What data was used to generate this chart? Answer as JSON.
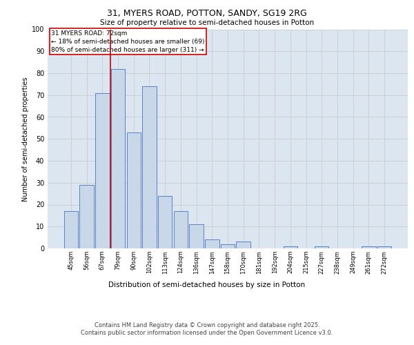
{
  "title1": "31, MYERS ROAD, POTTON, SANDY, SG19 2RG",
  "title2": "Size of property relative to semi-detached houses in Potton",
  "xlabel": "Distribution of semi-detached houses by size in Potton",
  "ylabel": "Number of semi-detached properties",
  "categories": [
    "45sqm",
    "56sqm",
    "67sqm",
    "79sqm",
    "90sqm",
    "102sqm",
    "113sqm",
    "124sqm",
    "136sqm",
    "147sqm",
    "158sqm",
    "170sqm",
    "181sqm",
    "192sqm",
    "204sqm",
    "215sqm",
    "227sqm",
    "238sqm",
    "249sqm",
    "261sqm",
    "272sqm"
  ],
  "values": [
    17,
    29,
    71,
    82,
    53,
    74,
    24,
    17,
    11,
    4,
    2,
    3,
    0,
    0,
    1,
    0,
    1,
    0,
    0,
    1,
    1
  ],
  "bar_color": "#c8d8e8",
  "bar_edge_color": "#4472c4",
  "highlight_line_color": "#cc0000",
  "annotation_text": "31 MYERS ROAD: 72sqm\n← 18% of semi-detached houses are smaller (69)\n80% of semi-detached houses are larger (311) →",
  "annotation_box_color": "#ffffff",
  "annotation_box_edge": "#cc0000",
  "ylim": [
    0,
    100
  ],
  "yticks": [
    0,
    10,
    20,
    30,
    40,
    50,
    60,
    70,
    80,
    90,
    100
  ],
  "grid_color": "#cccccc",
  "background_color": "#dce6f0",
  "footer": "Contains HM Land Registry data © Crown copyright and database right 2025.\nContains public sector information licensed under the Open Government Licence v3.0."
}
